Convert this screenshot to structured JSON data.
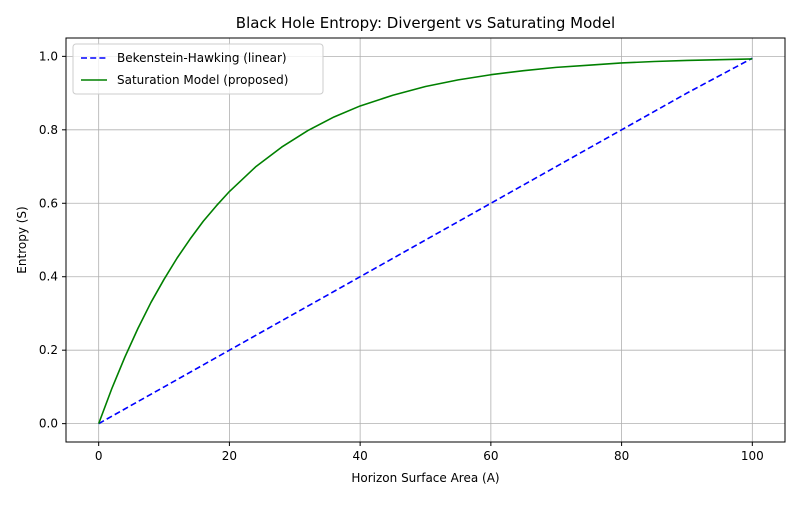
{
  "chart_data": {
    "type": "line",
    "title": "Black Hole Entropy: Divergent vs Saturating Model",
    "xlabel": "Horizon Surface Area (A)",
    "ylabel": "Entropy (S)",
    "xlim": [
      -5,
      105
    ],
    "ylim": [
      -0.05,
      1.05
    ],
    "xticks": [
      0,
      20,
      40,
      60,
      80,
      100
    ],
    "yticks": [
      0.0,
      0.2,
      0.4,
      0.6,
      0.8,
      1.0
    ],
    "xtick_labels": [
      "0",
      "20",
      "40",
      "60",
      "80",
      "100"
    ],
    "ytick_labels": [
      "0.0",
      "0.2",
      "0.4",
      "0.6",
      "0.8",
      "1.0"
    ],
    "grid": true,
    "legend_position": "top-left",
    "series": [
      {
        "name": "Bekenstein-Hawking (linear)",
        "color": "#0000ff",
        "style": "dashed",
        "x": [
          0,
          10,
          20,
          30,
          40,
          50,
          60,
          70,
          80,
          90,
          100
        ],
        "y": [
          0.0,
          0.1,
          0.2,
          0.3,
          0.4,
          0.5,
          0.6,
          0.7,
          0.8,
          0.9,
          0.995
        ]
      },
      {
        "name": "Saturation Model (proposed)",
        "color": "#008000",
        "style": "solid",
        "x": [
          0,
          2,
          4,
          6,
          8,
          10,
          12,
          14,
          16,
          18,
          20,
          24,
          28,
          32,
          36,
          40,
          45,
          50,
          55,
          60,
          65,
          70,
          75,
          80,
          85,
          90,
          95,
          100
        ],
        "y": [
          0.0,
          0.095,
          0.181,
          0.259,
          0.33,
          0.393,
          0.451,
          0.503,
          0.551,
          0.593,
          0.632,
          0.699,
          0.753,
          0.798,
          0.835,
          0.865,
          0.894,
          0.918,
          0.936,
          0.95,
          0.961,
          0.97,
          0.976,
          0.982,
          0.986,
          0.989,
          0.991,
          0.993
        ]
      }
    ]
  }
}
